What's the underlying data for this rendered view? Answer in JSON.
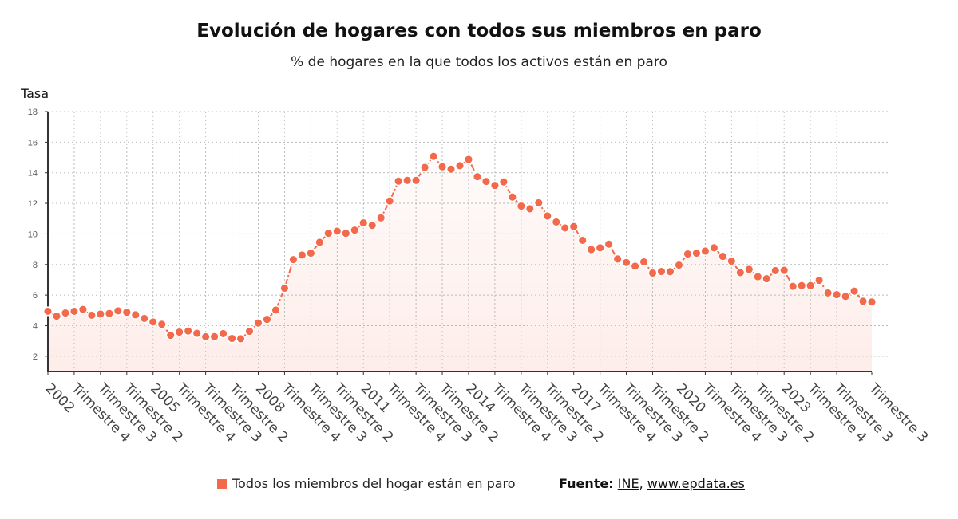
{
  "chart_data": {
    "type": "line",
    "title": "Evolución de hogares con todos sus miembros en paro",
    "subtitle": "% de hogares en la que todos los activos están en paro",
    "ylabel": "Tasa",
    "xlabel": "",
    "ylim": [
      1,
      18
    ],
    "yticks": [
      2,
      4,
      6,
      8,
      10,
      12,
      14,
      16,
      18
    ],
    "grid": true,
    "legend_position": "bottom",
    "start_year": 2002,
    "label_every": 3,
    "color": "#f26a4b",
    "series": [
      {
        "name": "Todos los miembros del hogar están en paro",
        "values": [
          4.94,
          4.62,
          4.83,
          4.94,
          5.06,
          4.68,
          4.76,
          4.8,
          4.97,
          4.88,
          4.71,
          4.47,
          4.24,
          4.09,
          3.37,
          3.58,
          3.65,
          3.5,
          3.27,
          3.28,
          3.48,
          3.16,
          3.14,
          3.63,
          4.17,
          4.41,
          5.02,
          6.45,
          8.32,
          8.62,
          8.74,
          9.45,
          10.04,
          10.18,
          10.04,
          10.25,
          10.72,
          10.56,
          11.05,
          12.15,
          13.45,
          13.5,
          13.5,
          14.35,
          15.07,
          14.39,
          14.23,
          14.46,
          14.87,
          13.74,
          13.43,
          13.17,
          13.4,
          12.41,
          11.82,
          11.64,
          12.04,
          11.17,
          10.78,
          10.39,
          10.48,
          9.58,
          8.98,
          9.09,
          9.33,
          8.36,
          8.13,
          7.89,
          8.17,
          7.44,
          7.54,
          7.53,
          7.96,
          8.69,
          8.74,
          8.88,
          9.09,
          8.53,
          8.22,
          7.47,
          7.68,
          7.2,
          7.07,
          7.6,
          7.62,
          6.57,
          6.62,
          6.62,
          6.97,
          6.14,
          6.03,
          5.91,
          6.26,
          5.6,
          5.55
        ]
      }
    ],
    "x_tick_labels": [
      "2002",
      "Trimestre 4",
      "Trimestre 3",
      "Trimestre 2",
      "2005",
      "Trimestre 4",
      "Trimestre 3",
      "Trimestre 2",
      "2008",
      "Trimestre 4",
      "Trimestre 3",
      "Trimestre 2",
      "2011",
      "Trimestre 4",
      "Trimestre 3",
      "Trimestre 2",
      "2014",
      "Trimestre 4",
      "Trimestre 3",
      "Trimestre 2",
      "2017",
      "Trimestre 4",
      "Trimestre 3",
      "Trimestre 2",
      "2020",
      "Trimestre 4",
      "Trimestre 3",
      "Trimestre 2",
      "2023",
      "Trimestre 4",
      "Trimestre 3",
      "Trimestre 3"
    ]
  },
  "legend": {
    "label": "Todos los miembros del hogar están en paro"
  },
  "source": {
    "prefix": "Fuente:",
    "link1": "INE",
    "sep": ",",
    "link2": "www.epdata.es"
  }
}
